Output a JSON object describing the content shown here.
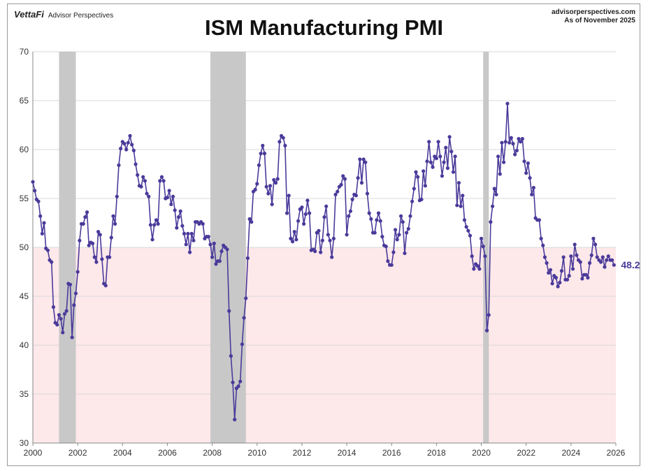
{
  "header": {
    "brand": "VettaFi",
    "brand_sub": "Advisor Perspectives",
    "source_site": "advisorperspectives.com",
    "as_of": "As of  November 2025"
  },
  "colors": {
    "line": "#4b3a9a",
    "contraction_band": "#fde8ea",
    "recession": "#c8c8c8",
    "grid": "#d9d9d9"
  },
  "chart_data": {
    "type": "line",
    "title": "ISM Manufacturing PMI",
    "ylim": [
      30,
      70
    ],
    "xlim": [
      2000,
      2026
    ],
    "y_ticks": [
      30,
      35,
      40,
      45,
      50,
      55,
      60,
      65,
      70
    ],
    "x_ticks": [
      2000,
      2002,
      2004,
      2006,
      2008,
      2010,
      2012,
      2014,
      2016,
      2018,
      2020,
      2022,
      2024,
      2026
    ],
    "threshold_band": {
      "from": 30,
      "to": 50
    },
    "recessions": [
      {
        "start": "2001-03",
        "end": "2001-11"
      },
      {
        "start": "2007-12",
        "end": "2009-06"
      },
      {
        "start": "2020-02",
        "end": "2020-04"
      }
    ],
    "last_value_label": "48.2",
    "series": [
      {
        "start": "2000-01",
        "frequency": "monthly",
        "values": [
          56.7,
          55.8,
          54.9,
          54.7,
          53.2,
          51.4,
          52.5,
          49.9,
          49.7,
          48.7,
          48.5,
          43.9,
          42.3,
          42.1,
          43.1,
          42.7,
          41.3,
          43.2,
          43.5,
          46.3,
          46.2,
          40.8,
          44.1,
          45.3,
          47.5,
          50.7,
          52.4,
          52.4,
          53.1,
          53.6,
          50.2,
          50.5,
          50.4,
          49.0,
          48.5,
          51.6,
          51.3,
          48.8,
          46.3,
          46.1,
          49.0,
          49.0,
          51.0,
          53.2,
          52.4,
          55.2,
          58.4,
          60.1,
          60.8,
          60.6,
          60.0,
          60.7,
          61.4,
          60.5,
          59.9,
          58.5,
          57.4,
          56.3,
          56.2,
          57.2,
          56.8,
          55.5,
          55.2,
          52.3,
          50.8,
          52.3,
          52.8,
          52.4,
          56.8,
          57.2,
          56.8,
          55.0,
          55.1,
          55.8,
          54.4,
          55.2,
          53.8,
          52.0,
          53.1,
          53.7,
          52.2,
          51.4,
          50.3,
          51.4,
          49.5,
          51.4,
          50.7,
          52.6,
          52.6,
          52.4,
          52.6,
          52.4,
          50.9,
          51.1,
          51.1,
          50.3,
          49.0,
          50.4,
          48.3,
          48.6,
          48.6,
          49.6,
          50.2,
          50.0,
          49.8,
          43.5,
          38.9,
          36.2,
          32.4,
          35.6,
          35.8,
          36.3,
          40.1,
          42.8,
          44.8,
          48.9,
          52.9,
          52.6,
          55.7,
          55.9,
          56.5,
          58.4,
          59.6,
          60.4,
          59.6,
          56.2,
          55.5,
          56.3,
          54.4,
          56.9,
          56.6,
          57.0,
          60.8,
          61.4,
          61.2,
          60.4,
          53.5,
          55.3,
          50.9,
          50.6,
          51.6,
          50.8,
          52.7,
          53.9,
          54.1,
          52.4,
          53.4,
          54.8,
          53.5,
          49.7,
          49.8,
          49.6,
          51.5,
          51.7,
          49.5,
          50.7,
          53.1,
          54.2,
          51.3,
          50.7,
          49.0,
          50.9,
          55.4,
          55.7,
          56.2,
          56.4,
          57.3,
          57.0,
          51.3,
          53.2,
          53.7,
          54.9,
          55.4,
          55.3,
          57.1,
          59.0,
          56.6,
          59.0,
          58.7,
          55.5,
          53.5,
          52.9,
          51.5,
          51.5,
          52.8,
          53.5,
          52.7,
          51.1,
          50.2,
          50.1,
          48.6,
          48.2,
          48.2,
          49.5,
          51.8,
          50.8,
          51.3,
          53.2,
          52.6,
          49.4,
          51.5,
          51.9,
          53.2,
          54.7,
          56.0,
          57.7,
          57.2,
          54.8,
          54.9,
          57.8,
          56.3,
          58.8,
          60.8,
          58.7,
          58.2,
          59.3,
          59.1,
          60.8,
          59.3,
          57.3,
          58.7,
          60.2,
          58.1,
          61.3,
          59.8,
          57.7,
          59.3,
          54.3,
          56.6,
          54.2,
          55.3,
          52.8,
          52.1,
          51.7,
          51.2,
          49.1,
          47.8,
          48.3,
          48.1,
          47.8,
          50.9,
          50.1,
          49.1,
          41.5,
          43.1,
          52.6,
          54.2,
          56.0,
          55.4,
          59.3,
          57.5,
          60.7,
          58.7,
          60.8,
          64.7,
          60.7,
          61.2,
          60.6,
          59.5,
          59.9,
          61.1,
          60.8,
          61.1,
          58.8,
          57.6,
          58.6,
          57.1,
          55.4,
          56.1,
          53.0,
          52.8,
          52.8,
          50.9,
          50.2,
          49.0,
          48.4,
          47.4,
          47.7,
          46.3,
          47.1,
          46.9,
          46.0,
          46.4,
          47.6,
          49.0,
          46.7,
          46.7,
          47.1,
          49.1,
          47.8,
          50.3,
          49.2,
          48.7,
          48.5,
          46.8,
          47.2,
          47.2,
          46.9,
          48.4,
          49.2,
          50.9,
          50.3,
          49.0,
          48.7,
          48.5,
          49.0,
          48.0,
          48.7,
          49.1,
          48.7,
          48.7,
          48.2
        ]
      }
    ]
  }
}
